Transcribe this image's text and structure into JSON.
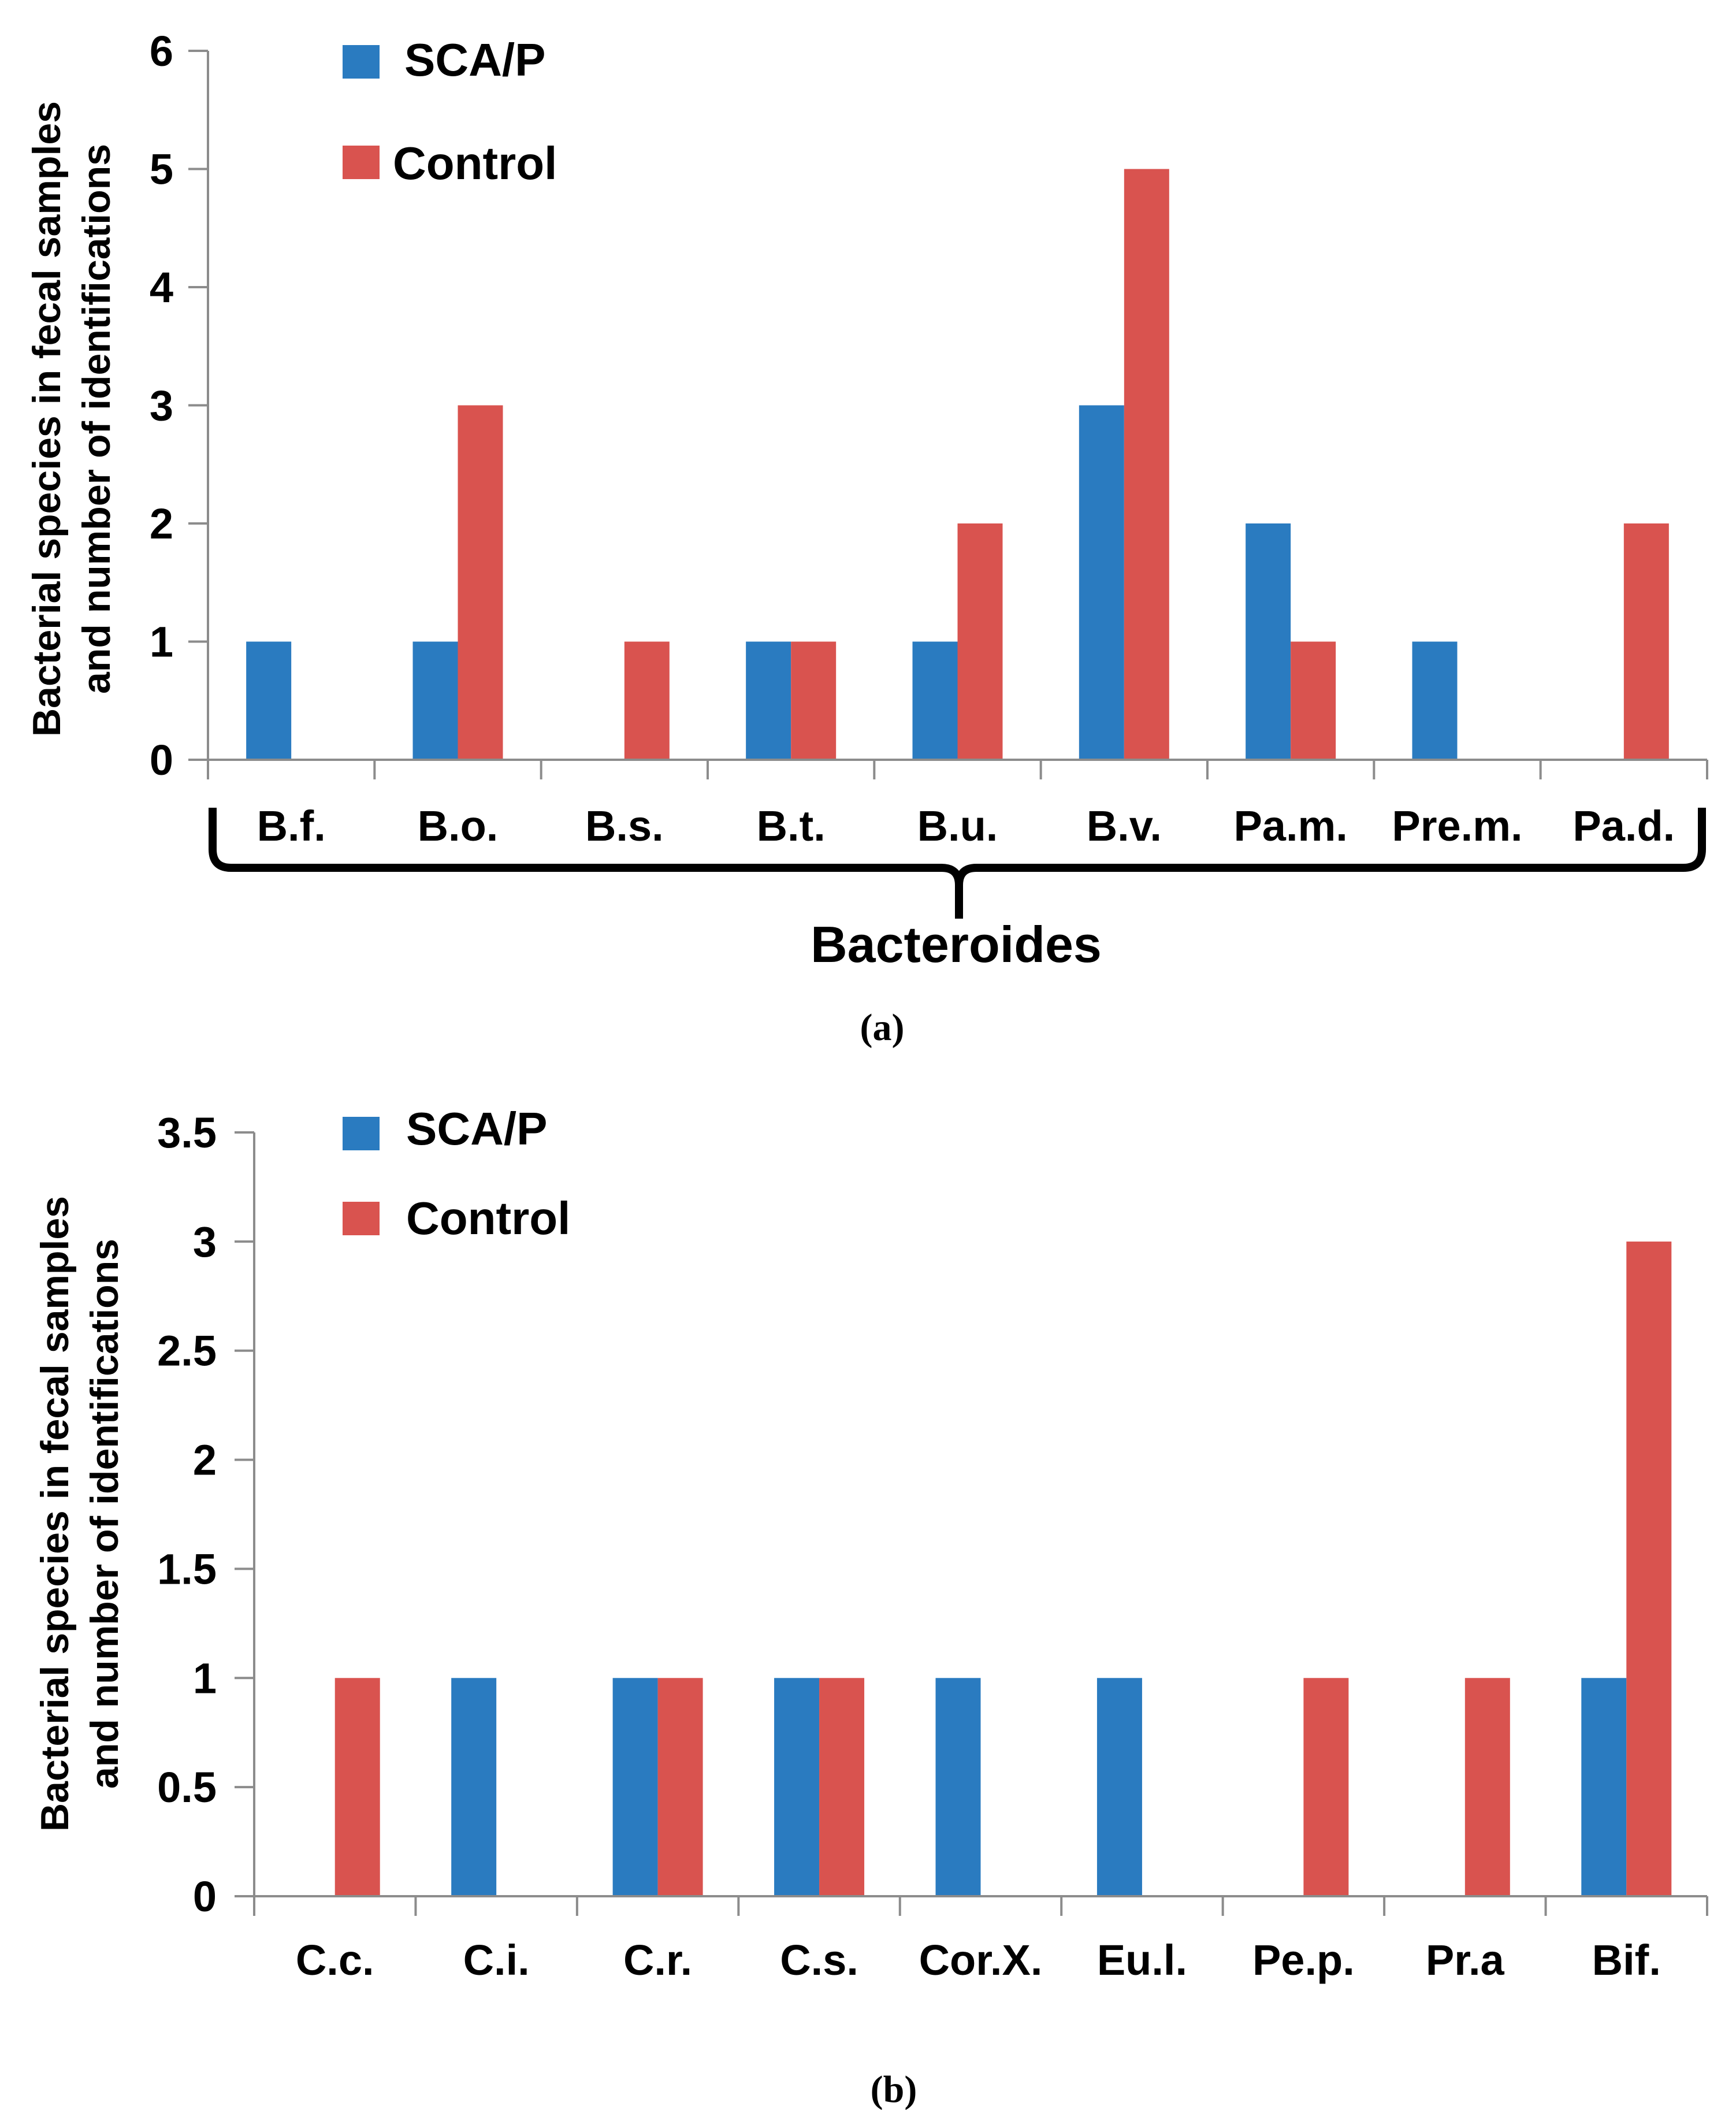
{
  "chart_data": [
    {
      "type": "bar",
      "panel_label": "(a)",
      "categories": [
        "B.f.",
        "B.o.",
        "B.s.",
        "B.t.",
        "B.u.",
        "B.v.",
        "Pa.m.",
        "Pre.m.",
        "Pa.d."
      ],
      "series": [
        {
          "name": "SCA/P",
          "color": "#2a7bc0",
          "values": [
            1,
            1,
            0,
            1,
            1,
            3,
            2,
            1,
            0
          ]
        },
        {
          "name": "Control",
          "color": "#d9534f",
          "values": [
            0,
            3,
            1,
            1,
            2,
            5,
            1,
            0,
            2
          ]
        }
      ],
      "ylabel_line1": "Bacterial species in fecal samples",
      "ylabel_line2": "and number of identifications",
      "ylim": [
        0,
        6
      ],
      "yticks": [
        "0",
        "1",
        "2",
        "3",
        "4",
        "5",
        "6"
      ],
      "group_label": "Bacteroides"
    },
    {
      "type": "bar",
      "panel_label": "(b)",
      "categories": [
        "C.c.",
        "C.i.",
        "C.r.",
        "C.s.",
        "Cor.X.",
        "Eu.l.",
        "Pe.p.",
        "Pr.a",
        "Bif."
      ],
      "series": [
        {
          "name": "SCA/P",
          "color": "#2a7bc0",
          "values": [
            0,
            1,
            1,
            1,
            1,
            1,
            0,
            0,
            1
          ]
        },
        {
          "name": "Control",
          "color": "#d9534f",
          "values": [
            1,
            0,
            1,
            1,
            0,
            0,
            1,
            1,
            3
          ]
        }
      ],
      "ylabel_line1": "Bacterial species in fecal samples",
      "ylabel_line2": "and number of identifications",
      "ylim": [
        0,
        3.5
      ],
      "yticks": [
        "0",
        "0.5",
        "1",
        "1.5",
        "2",
        "2.5",
        "3",
        "3.5"
      ]
    }
  ]
}
